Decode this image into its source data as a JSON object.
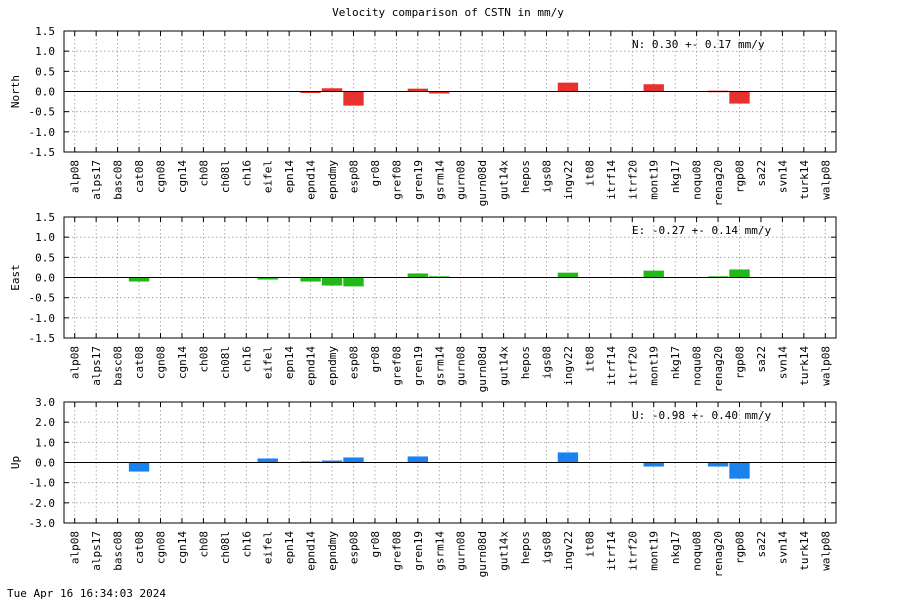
{
  "chart_title": "Velocity comparison of CSTN in mm/y",
  "timestamp": "Tue Apr 16 16:34:03 2024",
  "chart_data": [
    {
      "type": "bar",
      "ylabel": "North",
      "ylim": [
        -1.5,
        1.5
      ],
      "yticks": [
        "1.5",
        "1.0",
        "0.5",
        "0.0",
        "-0.5",
        "-1.0",
        "-1.5"
      ],
      "grid": true,
      "color": "#e8302e",
      "annotation": "N:   0.30 +-  0.17 mm/y",
      "categories": [
        "alp08",
        "alps17",
        "basc08",
        "cat08",
        "cgn08",
        "cgn14",
        "ch08",
        "ch08l",
        "ch16",
        "eifel",
        "epn14",
        "epnd14",
        "epndmy",
        "esp08",
        "gr08",
        "gref08",
        "gren19",
        "gsrm14",
        "gurn08",
        "gurn08d",
        "gut14x",
        "hepos",
        "igs08",
        "ingv22",
        "it08",
        "itrf14",
        "itrf20",
        "mont19",
        "nkg17",
        "noqu08",
        "renag20",
        "rgp08",
        "sa22",
        "svn14",
        "turk14",
        "walp08"
      ],
      "values": [
        0,
        0,
        0,
        0,
        0,
        0,
        0,
        0,
        0,
        0,
        0,
        -0.03,
        0.08,
        -0.35,
        0,
        0,
        0.07,
        -0.05,
        0,
        0,
        0,
        0,
        0,
        0.22,
        0,
        0,
        0,
        0.18,
        0,
        0,
        0.02,
        -0.3,
        0,
        0,
        0,
        0
      ]
    },
    {
      "type": "bar",
      "ylabel": "East",
      "ylim": [
        -1.5,
        1.5
      ],
      "yticks": [
        "1.5",
        "1.0",
        "0.5",
        "0.0",
        "-0.5",
        "-1.0",
        "-1.5"
      ],
      "grid": true,
      "color": "#22b81a",
      "annotation": "E:  -0.27 +-  0.14 mm/y",
      "categories": [
        "alp08",
        "alps17",
        "basc08",
        "cat08",
        "cgn08",
        "cgn14",
        "ch08",
        "ch08l",
        "ch16",
        "eifel",
        "epn14",
        "epnd14",
        "epndmy",
        "esp08",
        "gr08",
        "gref08",
        "gren19",
        "gsrm14",
        "gurn08",
        "gurn08d",
        "gut14x",
        "hepos",
        "igs08",
        "ingv22",
        "it08",
        "itrf14",
        "itrf20",
        "mont19",
        "nkg17",
        "noqu08",
        "renag20",
        "rgp08",
        "sa22",
        "svn14",
        "turk14",
        "walp08"
      ],
      "values": [
        0,
        0,
        0,
        -0.1,
        0,
        0,
        0,
        0,
        0,
        -0.05,
        0,
        -0.1,
        -0.2,
        -0.22,
        0,
        0,
        0.1,
        0.03,
        0,
        0,
        0,
        0,
        0,
        0.12,
        0,
        0,
        0,
        0.17,
        0,
        0,
        0.03,
        0.2,
        0,
        0,
        0,
        0
      ]
    },
    {
      "type": "bar",
      "ylabel": "Up",
      "ylim": [
        -3.0,
        3.0
      ],
      "yticks": [
        "3.0",
        "2.0",
        "1.0",
        "0.0",
        "-1.0",
        "-2.0",
        "-3.0"
      ],
      "grid": true,
      "color": "#1a82ef",
      "annotation": "U:  -0.98 +-  0.40 mm/y",
      "categories": [
        "alp08",
        "alps17",
        "basc08",
        "cat08",
        "cgn08",
        "cgn14",
        "ch08",
        "ch08l",
        "ch16",
        "eifel",
        "epn14",
        "epnd14",
        "epndmy",
        "esp08",
        "gr08",
        "gref08",
        "gren19",
        "gsrm14",
        "gurn08",
        "gurn08d",
        "gut14x",
        "hepos",
        "igs08",
        "ingv22",
        "it08",
        "itrf14",
        "itrf20",
        "mont19",
        "nkg17",
        "noqu08",
        "renag20",
        "rgp08",
        "sa22",
        "svn14",
        "turk14",
        "walp08"
      ],
      "values": [
        0,
        0,
        0,
        -0.45,
        0,
        0,
        0,
        0,
        0,
        0.2,
        0,
        0.05,
        0.1,
        0.25,
        0,
        0,
        0.3,
        0,
        0,
        0,
        0,
        0,
        0,
        0.5,
        0,
        0,
        0,
        -0.2,
        0,
        0,
        -0.2,
        -0.8,
        0,
        0,
        0,
        0
      ]
    }
  ]
}
